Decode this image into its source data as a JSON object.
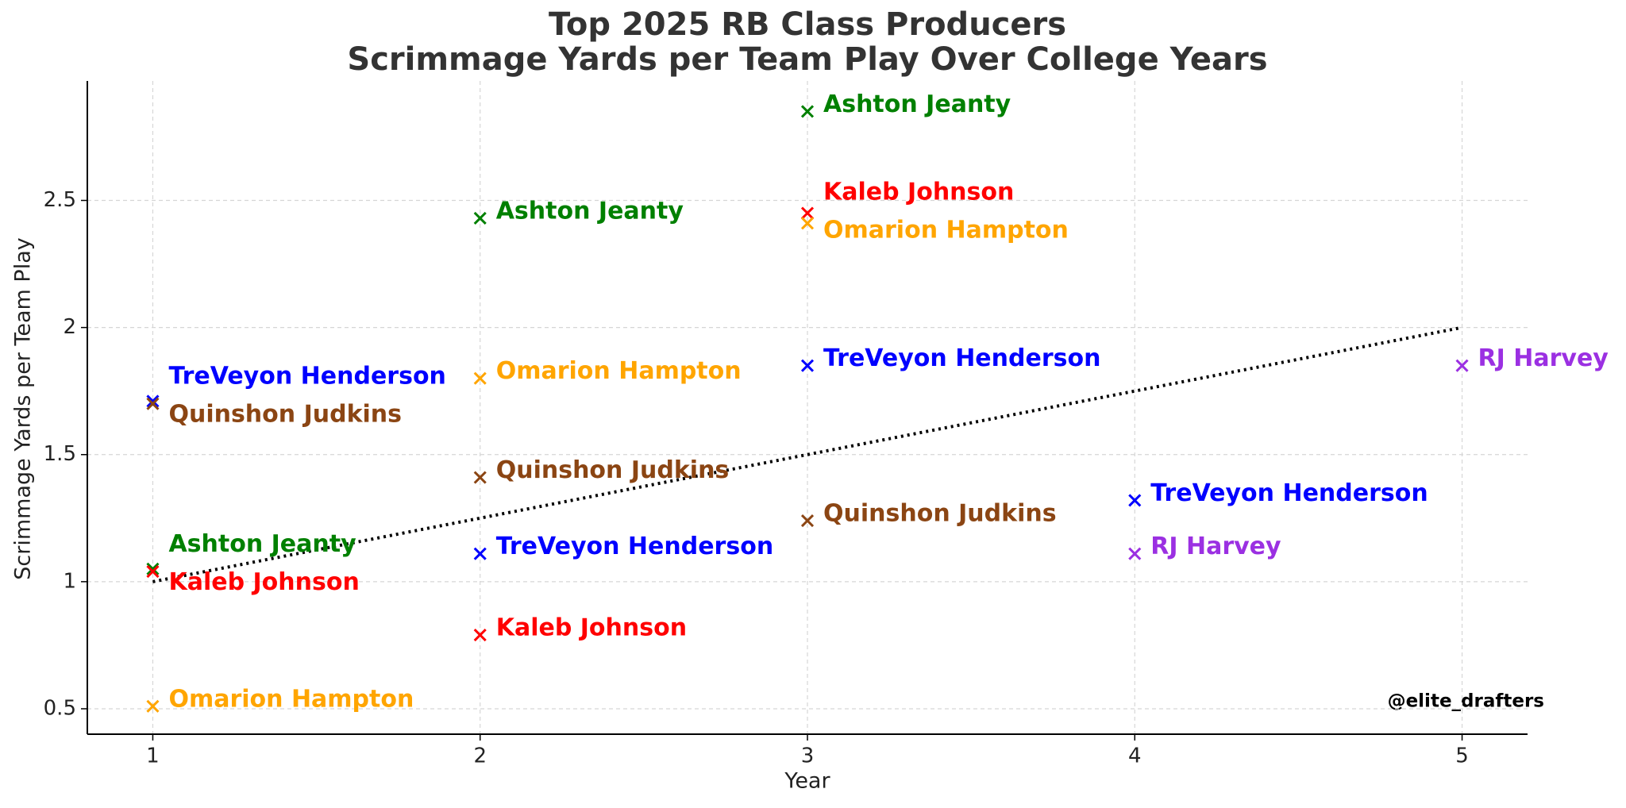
{
  "chart_data": {
    "type": "scatter",
    "title": "Top 2025 RB Class Producers",
    "subtitle": "Scrimmage Yards per Team Play Over College Years",
    "x_label": "Year",
    "y_label": "Scrimmage Yards per Team Play",
    "xlim": [
      0.8,
      5.2
    ],
    "ylim": [
      0.4,
      2.97
    ],
    "xticks": [
      1,
      2,
      3,
      4,
      5
    ],
    "yticks": [
      0.5,
      1.0,
      1.5,
      2.0,
      2.5
    ],
    "grid": true,
    "marker": "x",
    "series": [
      {
        "name": "TreVeyon Henderson",
        "color": "#0000ff",
        "x": [
          1,
          2,
          3,
          4
        ],
        "values": [
          1.71,
          1.11,
          1.85,
          1.32
        ]
      },
      {
        "name": "Quinshon Judkins",
        "color": "#8b4513",
        "x": [
          1,
          2,
          3
        ],
        "values": [
          1.7,
          1.41,
          1.24
        ]
      },
      {
        "name": "Ashton Jeanty",
        "color": "#008000",
        "x": [
          1,
          2,
          3
        ],
        "values": [
          1.05,
          2.43,
          2.85
        ]
      },
      {
        "name": "Kaleb Johnson",
        "color": "#ff0000",
        "x": [
          1,
          2,
          3
        ],
        "values": [
          1.04,
          0.79,
          2.45
        ]
      },
      {
        "name": "Omarion Hampton",
        "color": "#ffa500",
        "x": [
          1,
          2,
          3
        ],
        "values": [
          0.51,
          1.8,
          2.41
        ]
      },
      {
        "name": "RJ Harvey",
        "color": "#9b30e2",
        "x": [
          4,
          5
        ],
        "values": [
          1.11,
          1.85
        ]
      }
    ],
    "trend_line": {
      "x": [
        1,
        5
      ],
      "values": [
        1.0,
        2.0
      ],
      "color": "#000000"
    },
    "watermark": "@elite_drafters"
  }
}
